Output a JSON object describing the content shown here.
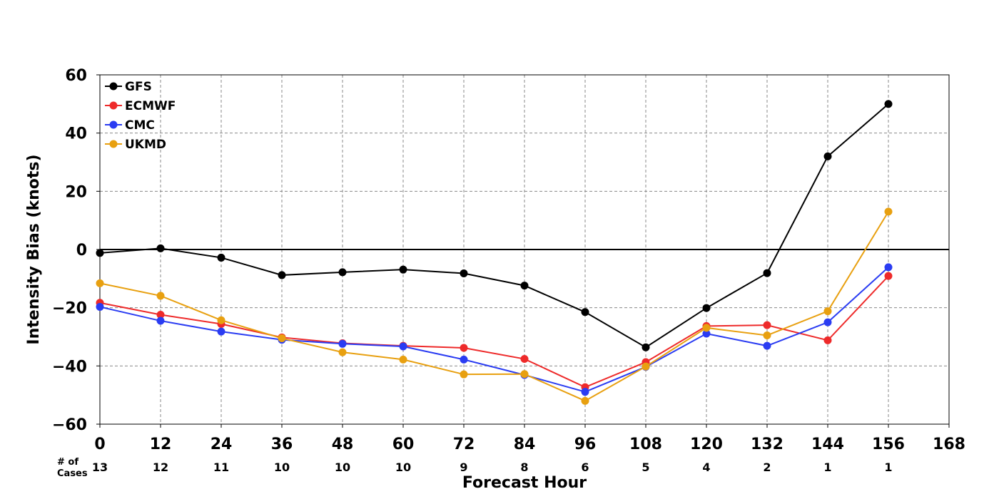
{
  "chart_data": {
    "type": "line",
    "title": "",
    "xlabel": "Forecast Hour",
    "ylabel": "Intensity Bias (knots)",
    "xlim": [
      0,
      168
    ],
    "ylim": [
      -60,
      60
    ],
    "x_ticks": [
      "0",
      "12",
      "24",
      "36",
      "48",
      "60",
      "72",
      "84",
      "96",
      "108",
      "120",
      "132",
      "144",
      "156",
      "168"
    ],
    "y_ticks": [
      "60",
      "40",
      "20",
      "0",
      "−20",
      "−40",
      "−60"
    ],
    "grid": true,
    "zero_line": true,
    "legend_position": "top-left",
    "cases_title": [
      "# of",
      "Cases"
    ],
    "cases": [
      {
        "x": 0,
        "n": "13"
      },
      {
        "x": 12,
        "n": "12"
      },
      {
        "x": 24,
        "n": "11"
      },
      {
        "x": 36,
        "n": "10"
      },
      {
        "x": 48,
        "n": "10"
      },
      {
        "x": 60,
        "n": "10"
      },
      {
        "x": 72,
        "n": "9"
      },
      {
        "x": 84,
        "n": "8"
      },
      {
        "x": 96,
        "n": "6"
      },
      {
        "x": 108,
        "n": "5"
      },
      {
        "x": 120,
        "n": "4"
      },
      {
        "x": 132,
        "n": "2"
      },
      {
        "x": 144,
        "n": "1"
      },
      {
        "x": 156,
        "n": "1"
      }
    ],
    "x": [
      0,
      12,
      24,
      36,
      48,
      60,
      72,
      84,
      96,
      108,
      120,
      132,
      144,
      156
    ],
    "series": [
      {
        "name": "GFS",
        "color": "#000000",
        "values": [
          -1.2,
          0.4,
          -2.8,
          -8.8,
          -7.8,
          -6.9,
          -8.2,
          -12.4,
          -21.5,
          -33.6,
          -20.1,
          -8.1,
          32.0,
          50.0
        ]
      },
      {
        "name": "ECMWF",
        "color": "#ee2a2a",
        "values": [
          -18.3,
          -22.4,
          -25.6,
          -30.2,
          -32.2,
          -33.1,
          -33.8,
          -37.6,
          -47.3,
          -38.7,
          -26.3,
          -26.0,
          -31.2,
          -9.1
        ]
      },
      {
        "name": "CMC",
        "color": "#2a3cf2",
        "values": [
          -19.7,
          -24.5,
          -28.2,
          -31.0,
          -32.4,
          -33.3,
          -37.8,
          -43.1,
          -48.9,
          -40.3,
          -28.9,
          -33.1,
          -25.0,
          -6.1
        ]
      },
      {
        "name": "UKMD",
        "color": "#e8a010",
        "values": [
          -11.6,
          -15.9,
          -24.3,
          -30.5,
          -35.3,
          -37.8,
          -42.9,
          -42.8,
          -52.0,
          -40.2,
          -26.9,
          -29.5,
          -21.2,
          13.0
        ]
      }
    ]
  }
}
